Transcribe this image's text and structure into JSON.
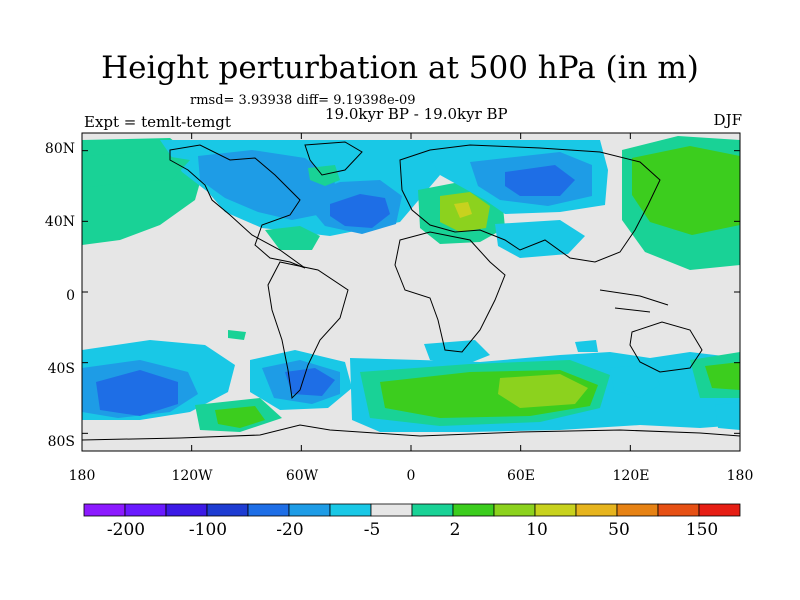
{
  "title": "Height perturbation at 500 hPa (in m)",
  "stats": "rmsd= 3.93938 diff= 9.19398e-09",
  "subtitle": "19.0kyr BP - 19.0kyr BP",
  "experiment": "Expt = temlt-temgt",
  "season": "DJF",
  "axes": {
    "lat_ticks": [
      "80N",
      "40N",
      "0",
      "40S",
      "80S"
    ],
    "lon_ticks": [
      "180",
      "120W",
      "60W",
      "0",
      "60E",
      "120E",
      "180"
    ]
  },
  "colorbar": {
    "colors": [
      "#8c1aff",
      "#6a1aff",
      "#3c1ae6",
      "#1e3cd2",
      "#1e6ee6",
      "#1e9ce6",
      "#19c8e6",
      "#e6e6e6",
      "#19d296",
      "#3ccd1e",
      "#8cd21e",
      "#c8d21e",
      "#e6b41e",
      "#e68214",
      "#e65014",
      "#e61e14"
    ],
    "labels": [
      "-200",
      "-100",
      "-20",
      "-5",
      "2",
      "10",
      "50",
      "150"
    ]
  },
  "map_colors": {
    "background": "#e6e6e6",
    "neg_light": "#19c8e6",
    "neg_mid": "#1e9ce6",
    "neg_deep": "#1e6ee6",
    "pos_light": "#19d296",
    "pos_mid": "#3ccd1e",
    "pos_high": "#8cd21e",
    "pos_peak": "#c8d21e",
    "coast": "#000000"
  }
}
